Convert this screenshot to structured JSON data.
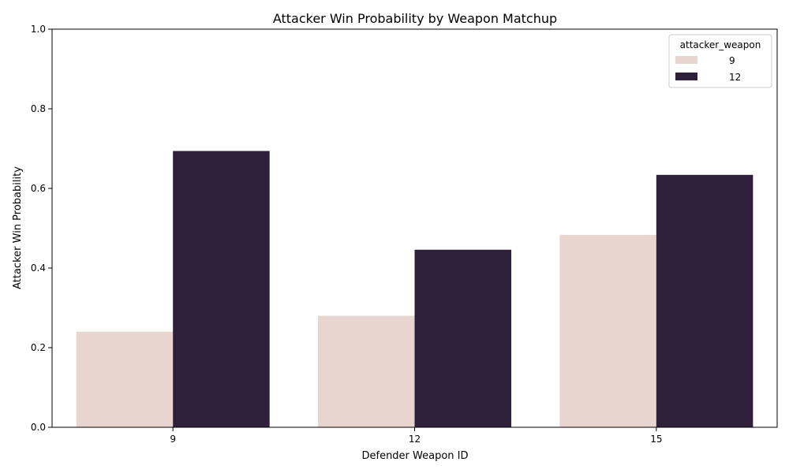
{
  "chart_data": {
    "type": "bar",
    "title": "Attacker Win Probability by Weapon Matchup",
    "xlabel": "Defender Weapon ID",
    "ylabel": "Attacker Win Probability",
    "categories": [
      "9",
      "12",
      "15"
    ],
    "ylim": [
      0,
      1.0
    ],
    "yticks": [
      "0.0",
      "0.2",
      "0.4",
      "0.6",
      "0.8",
      "1.0"
    ],
    "grid": false,
    "legend": {
      "title": "attacker_weapon",
      "placement": "top-right"
    },
    "series": [
      {
        "name": "9",
        "color": "#e8d5d0",
        "values": [
          0.24,
          0.28,
          0.483
        ]
      },
      {
        "name": "12",
        "color": "#2e1f3b",
        "values": [
          0.694,
          0.446,
          0.634
        ]
      }
    ]
  }
}
